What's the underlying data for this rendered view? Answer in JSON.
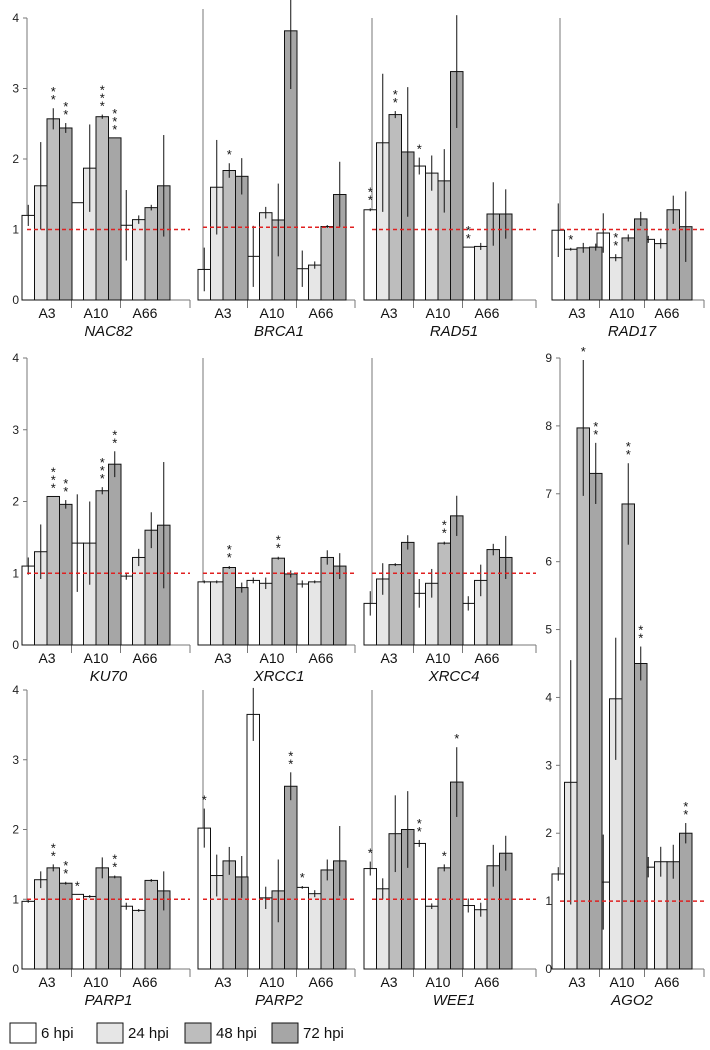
{
  "colors": {
    "6 hpi": "#ffffff",
    "24 hpi": "#e6e6e6",
    "48 hpi": "#bdbdbd",
    "72 hpi": "#a6a6a6",
    "reference": "#e02020"
  },
  "legend": [
    "6 hpi",
    "24 hpi",
    "48 hpi",
    "72 hpi"
  ],
  "chart_data": [
    {
      "type": "bar",
      "gene": "NAC82",
      "categories": [
        "A3",
        "A10",
        "A66"
      ],
      "ylim": [
        0,
        4
      ],
      "yticks": [
        "0",
        "1",
        "2",
        "3",
        "4"
      ],
      "reference_line": 1,
      "series": [
        {
          "name": "6 hpi",
          "values": [
            1.2,
            1.38,
            1.06
          ],
          "errors": [
            0.15,
            0,
            0.5
          ],
          "stars": [
            "",
            "",
            ""
          ]
        },
        {
          "name": "24 hpi",
          "values": [
            1.62,
            1.87,
            1.14
          ],
          "errors": [
            0.62,
            0.62,
            0.06
          ],
          "stars": [
            "",
            "",
            ""
          ]
        },
        {
          "name": "48 hpi",
          "values": [
            2.57,
            2.6,
            1.31
          ],
          "errors": [
            0.15,
            0.03,
            0.04
          ],
          "stars": [
            "**",
            "***",
            ""
          ]
        },
        {
          "name": "72 hpi",
          "values": [
            2.44,
            2.3,
            1.62
          ],
          "errors": [
            0.07,
            0,
            0.72
          ],
          "stars": [
            "**",
            "***",
            ""
          ]
        }
      ]
    },
    {
      "type": "bar",
      "gene": "BRCA1",
      "categories": [
        "A3",
        "A10",
        "A66"
      ],
      "ylim": [
        0,
        4
      ],
      "yticks": [],
      "reference_line": 1,
      "series": [
        {
          "name": "6 hpi",
          "values": [
            0.42,
            0.6,
            0.43
          ],
          "errors": [
            0.3,
            0.42,
            0.25
          ],
          "stars": [
            "",
            "",
            ""
          ]
        },
        {
          "name": "24 hpi",
          "values": [
            1.55,
            1.2,
            0.48
          ],
          "errors": [
            0.65,
            0.08,
            0.05
          ],
          "stars": [
            "",
            "",
            ""
          ]
        },
        {
          "name": "48 hpi",
          "values": [
            1.78,
            1.1,
            1.01
          ],
          "errors": [
            0.1,
            0.5,
            0.02
          ],
          "stars": [
            "*",
            "",
            ""
          ]
        },
        {
          "name": "72 hpi",
          "values": [
            1.7,
            3.7,
            1.45
          ],
          "errors": [
            0.25,
            0.8,
            0.45
          ],
          "stars": [
            "",
            "",
            ""
          ]
        }
      ]
    },
    {
      "type": "bar",
      "gene": "RAD51",
      "categories": [
        "A3",
        "A10",
        "A66"
      ],
      "ylim": [
        0,
        4
      ],
      "yticks": [],
      "reference_line": 1,
      "series": [
        {
          "name": "6 hpi",
          "values": [
            1.28,
            1.9,
            0.75
          ],
          "errors": [
            0.02,
            0.12,
            0
          ],
          "stars": [
            "**",
            "*",
            "**"
          ]
        },
        {
          "name": "24 hpi",
          "values": [
            2.23,
            1.8,
            0.76
          ],
          "errors": [
            0.98,
            0.25,
            0.05
          ],
          "stars": [
            "",
            "",
            ""
          ]
        },
        {
          "name": "48 hpi",
          "values": [
            2.63,
            1.69,
            1.22
          ],
          "errors": [
            0.05,
            0.45,
            0.45
          ],
          "stars": [
            "**",
            "",
            ""
          ]
        },
        {
          "name": "72 hpi",
          "values": [
            2.1,
            3.24,
            1.22
          ],
          "errors": [
            0.92,
            0.8,
            0.35
          ],
          "stars": [
            "",
            "",
            ""
          ]
        }
      ]
    },
    {
      "type": "bar",
      "gene": "RAD17",
      "categories": [
        "A3",
        "A10",
        "A66"
      ],
      "ylim": [
        0,
        4
      ],
      "yticks": [],
      "reference_line": 1,
      "series": [
        {
          "name": "6 hpi",
          "values": [
            0.99,
            0.95,
            0.86
          ],
          "errors": [
            0.38,
            0.28,
            0.05
          ],
          "stars": [
            "",
            "",
            ""
          ]
        },
        {
          "name": "24 hpi",
          "values": [
            0.72,
            0.6,
            0.8
          ],
          "errors": [
            0.02,
            0.05,
            0.07
          ],
          "stars": [
            "*",
            "**",
            ""
          ]
        },
        {
          "name": "48 hpi",
          "values": [
            0.74,
            0.88,
            1.28
          ],
          "errors": [
            0.07,
            0.05,
            0.2
          ],
          "stars": [
            "",
            "",
            ""
          ]
        },
        {
          "name": "72 hpi",
          "values": [
            0.75,
            1.15,
            1.04
          ],
          "errors": [
            0.05,
            0.1,
            0.5
          ],
          "stars": [
            "",
            "",
            ""
          ]
        }
      ]
    },
    {
      "type": "bar",
      "gene": "KU70",
      "categories": [
        "A3",
        "A10",
        "A66"
      ],
      "ylim": [
        0,
        4
      ],
      "yticks": [
        "0",
        "1",
        "2",
        "3",
        "4"
      ],
      "reference_line": 1,
      "series": [
        {
          "name": "6 hpi",
          "values": [
            1.1,
            1.42,
            0.96
          ],
          "errors": [
            0.12,
            0.68,
            0.05
          ],
          "stars": [
            "",
            "",
            ""
          ]
        },
        {
          "name": "24 hpi",
          "values": [
            1.3,
            1.42,
            1.22
          ],
          "errors": [
            0.38,
            0.58,
            0.12
          ],
          "stars": [
            "",
            "",
            ""
          ]
        },
        {
          "name": "48 hpi",
          "values": [
            2.07,
            2.15,
            1.6
          ],
          "errors": [
            0,
            0.05,
            0.25
          ],
          "stars": [
            "***",
            "***",
            ""
          ]
        },
        {
          "name": "72 hpi",
          "values": [
            1.96,
            2.52,
            1.67
          ],
          "errors": [
            0.06,
            0.18,
            0.88
          ],
          "stars": [
            "**",
            "**",
            ""
          ]
        }
      ]
    },
    {
      "type": "bar",
      "gene": "XRCC1",
      "categories": [
        "A3",
        "A10",
        "A66"
      ],
      "ylim": [
        0,
        4
      ],
      "yticks": [],
      "reference_line": 1,
      "series": [
        {
          "name": "6 hpi",
          "values": [
            0.88,
            0.9,
            0.85
          ],
          "errors": [
            0.02,
            0.04,
            0.05
          ],
          "stars": [
            "",
            "",
            ""
          ]
        },
        {
          "name": "24 hpi",
          "values": [
            0.88,
            0.86,
            0.88
          ],
          "errors": [
            0.02,
            0.08,
            0.02
          ],
          "stars": [
            "",
            "",
            ""
          ]
        },
        {
          "name": "48 hpi",
          "values": [
            1.08,
            1.21,
            1.22
          ],
          "errors": [
            0.02,
            0.02,
            0.1
          ],
          "stars": [
            "**",
            "**",
            ""
          ]
        },
        {
          "name": "72 hpi",
          "values": [
            0.8,
            0.99,
            1.1
          ],
          "errors": [
            0.07,
            0.05,
            0.18
          ],
          "stars": [
            "",
            "",
            ""
          ]
        }
      ]
    },
    {
      "type": "bar",
      "gene": "XRCC4",
      "categories": [
        "A3",
        "A10",
        "A66"
      ],
      "ylim": [
        0,
        4
      ],
      "yticks": [],
      "reference_line": 1,
      "series": [
        {
          "name": "6 hpi",
          "values": [
            0.58,
            0.72,
            0.58
          ],
          "errors": [
            0.17,
            0.2,
            0.1
          ],
          "stars": [
            "",
            "",
            ""
          ]
        },
        {
          "name": "24 hpi",
          "values": [
            0.92,
            0.86,
            0.9
          ],
          "errors": [
            0.22,
            0.2,
            0.22
          ],
          "stars": [
            "",
            "",
            ""
          ]
        },
        {
          "name": "48 hpi",
          "values": [
            1.12,
            1.42,
            1.33
          ],
          "errors": [
            0.02,
            0.02,
            0.08
          ],
          "stars": [
            "",
            "**",
            ""
          ]
        },
        {
          "name": "72 hpi",
          "values": [
            1.43,
            1.8,
            1.22
          ],
          "errors": [
            0.1,
            0.28,
            0.3
          ],
          "stars": [
            "",
            "",
            ""
          ]
        }
      ]
    },
    {
      "type": "bar",
      "gene": "PARP1",
      "categories": [
        "A3",
        "A10",
        "A66"
      ],
      "ylim": [
        0,
        4
      ],
      "yticks": [
        "0",
        "1",
        "2",
        "3",
        "4"
      ],
      "reference_line": 1,
      "series": [
        {
          "name": "6 hpi",
          "values": [
            0.97,
            1.07,
            0.9
          ],
          "errors": [
            0.02,
            0,
            0.05
          ],
          "stars": [
            "",
            "*",
            ""
          ]
        },
        {
          "name": "24 hpi",
          "values": [
            1.28,
            1.04,
            0.84
          ],
          "errors": [
            0.12,
            0.02,
            0.02
          ],
          "stars": [
            "",
            "",
            ""
          ]
        },
        {
          "name": "48 hpi",
          "values": [
            1.45,
            1.45,
            1.27
          ],
          "errors": [
            0.05,
            0.15,
            0.02
          ],
          "stars": [
            "**",
            "",
            ""
          ]
        },
        {
          "name": "72 hpi",
          "values": [
            1.23,
            1.32,
            1.12
          ],
          "errors": [
            0.02,
            0.02,
            0.28
          ],
          "stars": [
            "**",
            "**",
            ""
          ]
        }
      ]
    },
    {
      "type": "bar",
      "gene": "PARP2",
      "categories": [
        "A3",
        "A10",
        "A66"
      ],
      "ylim": [
        0,
        4
      ],
      "yticks": [],
      "reference_line": 1,
      "series": [
        {
          "name": "6 hpi",
          "values": [
            2.02,
            3.65,
            1.17
          ],
          "errors": [
            0.28,
            0.38,
            0.02
          ],
          "stars": [
            "*",
            "",
            "*"
          ]
        },
        {
          "name": "24 hpi",
          "values": [
            1.34,
            1.02,
            1.08
          ],
          "errors": [
            0.3,
            0.16,
            0.05
          ],
          "stars": [
            "",
            "",
            ""
          ]
        },
        {
          "name": "48 hpi",
          "values": [
            1.55,
            1.12,
            1.42
          ],
          "errors": [
            0.2,
            0.45,
            0.15
          ],
          "stars": [
            "",
            "",
            ""
          ]
        },
        {
          "name": "72 hpi",
          "values": [
            1.32,
            2.62,
            1.55
          ],
          "errors": [
            0.3,
            0.2,
            0.5
          ],
          "stars": [
            "",
            "**",
            ""
          ]
        }
      ]
    },
    {
      "type": "bar",
      "gene": "WEE1",
      "categories": [
        "A3",
        "A10",
        "A66"
      ],
      "ylim": [
        0,
        4
      ],
      "yticks": [],
      "reference_line": 1,
      "series": [
        {
          "name": "6 hpi",
          "values": [
            1.44,
            1.8,
            0.91
          ],
          "errors": [
            0.1,
            0.05,
            0.1
          ],
          "stars": [
            "*",
            "**",
            ""
          ]
        },
        {
          "name": "24 hpi",
          "values": [
            1.15,
            0.9,
            0.85
          ],
          "errors": [
            0.15,
            0.04,
            0.1
          ],
          "stars": [
            "",
            "",
            ""
          ]
        },
        {
          "name": "48 hpi",
          "values": [
            1.94,
            1.45,
            1.48
          ],
          "errors": [
            0.55,
            0.05,
            0.3
          ],
          "stars": [
            "",
            "*",
            ""
          ]
        },
        {
          "name": "72 hpi",
          "values": [
            2.0,
            2.68,
            1.66
          ],
          "errors": [
            0.55,
            0.5,
            0.25
          ],
          "stars": [
            "",
            "*",
            ""
          ]
        }
      ]
    },
    {
      "type": "bar",
      "gene": "AGO2",
      "categories": [
        "A3",
        "A10",
        "A66"
      ],
      "ylim": [
        0,
        9
      ],
      "yticks": [
        "0",
        "1",
        "2",
        "3",
        "4",
        "5",
        "6",
        "7",
        "8",
        "9"
      ],
      "reference_line": 1,
      "series": [
        {
          "name": "6 hpi",
          "values": [
            1.4,
            1.28,
            1.5
          ],
          "errors": [
            0.1,
            0.7,
            0.15
          ],
          "stars": [
            "",
            "",
            ""
          ]
        },
        {
          "name": "24 hpi",
          "values": [
            2.75,
            3.98,
            1.58
          ],
          "errors": [
            1.8,
            0.9,
            0.22
          ],
          "stars": [
            "",
            "",
            ""
          ]
        },
        {
          "name": "48 hpi",
          "values": [
            7.97,
            6.85,
            1.58
          ],
          "errors": [
            1.0,
            0.6,
            0.25
          ],
          "stars": [
            "*",
            "**",
            ""
          ]
        },
        {
          "name": "72 hpi",
          "values": [
            7.3,
            4.5,
            2.0
          ],
          "errors": [
            0.45,
            0.25,
            0.15
          ],
          "stars": [
            "**",
            "**",
            "**"
          ]
        }
      ]
    }
  ]
}
